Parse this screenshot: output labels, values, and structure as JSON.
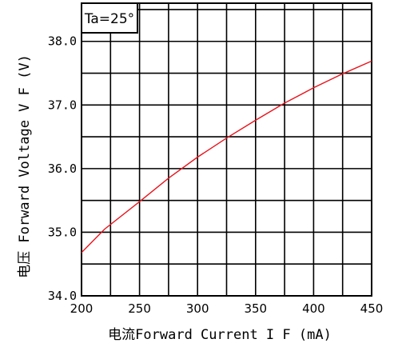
{
  "chart_data": {
    "type": "line",
    "annotation": "Ta=25°",
    "xlabel": "电流Forward Current I F (mA)",
    "ylabel": "电压 Forward Voltage V F (V)",
    "xlim": [
      200,
      450
    ],
    "ylim": [
      34.0,
      38.6
    ],
    "x_ticks": [
      200,
      250,
      300,
      350,
      400,
      450
    ],
    "y_ticks": [
      "34.0",
      "35.0",
      "36.0",
      "37.0",
      "38.0"
    ],
    "grid": true,
    "series": [
      {
        "color": "#e8141c",
        "x": [
          200,
          220,
          250,
          275,
          300,
          325,
          350,
          375,
          400,
          425,
          450
        ],
        "y": [
          34.68,
          35.05,
          35.48,
          35.85,
          36.18,
          36.48,
          36.76,
          37.03,
          37.27,
          37.49,
          37.69
        ]
      }
    ]
  }
}
